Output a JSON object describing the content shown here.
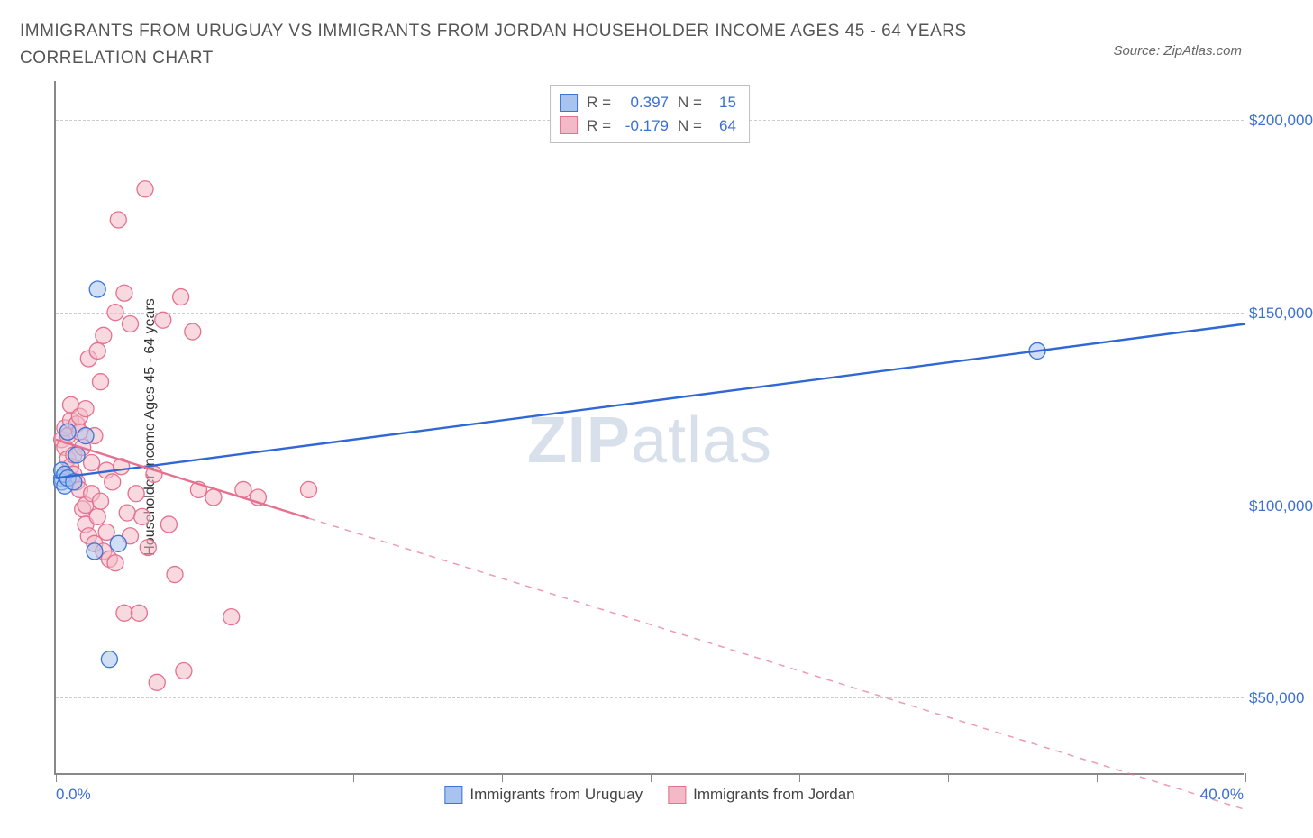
{
  "title": "IMMIGRANTS FROM URUGUAY VS IMMIGRANTS FROM JORDAN HOUSEHOLDER INCOME AGES 45 - 64 YEARS CORRELATION CHART",
  "source": "Source: ZipAtlas.com",
  "watermark_a": "ZIP",
  "watermark_b": "atlas",
  "y_axis_title": "Householder Income Ages 45 - 64 years",
  "chart": {
    "type": "scatter",
    "background_color": "#ffffff",
    "grid_color": "#cccccc",
    "axis_color": "#888888",
    "xlim": [
      0,
      40
    ],
    "ylim": [
      30000,
      210000
    ],
    "x_ticks": [
      0,
      5,
      10,
      15,
      20,
      25,
      30,
      35,
      40
    ],
    "y_ticks": [
      50000,
      100000,
      150000,
      200000
    ],
    "y_tick_labels": [
      "$50,000",
      "$100,000",
      "$150,000",
      "$200,000"
    ],
    "x_left_label": "0.0%",
    "x_right_label": "40.0%",
    "label_color": "#3b6fd4",
    "label_fontsize": 17,
    "title_fontsize": 19,
    "title_color": "#555555",
    "point_radius": 9,
    "point_opacity": 0.55,
    "line_width": 2.4
  },
  "series": [
    {
      "name": "Immigrants from Uruguay",
      "fill_color": "#a9c3ef",
      "stroke_color": "#3b74d6",
      "line_color": "#2f67d4",
      "stats": {
        "R_label": "R =",
        "R": "0.397",
        "N_label": "N =",
        "N": "15"
      },
      "trend": {
        "x1": 0,
        "y1": 107000,
        "x2": 40,
        "y2": 147000,
        "solid_until_x": 40
      },
      "points": [
        [
          0.2,
          107000
        ],
        [
          0.2,
          109000
        ],
        [
          0.2,
          106000
        ],
        [
          0.3,
          105000
        ],
        [
          0.3,
          108000
        ],
        [
          0.4,
          119000
        ],
        [
          0.4,
          107000
        ],
        [
          0.6,
          106000
        ],
        [
          0.7,
          113000
        ],
        [
          1.0,
          118000
        ],
        [
          1.3,
          88000
        ],
        [
          1.4,
          156000
        ],
        [
          1.8,
          60000
        ],
        [
          2.1,
          90000
        ],
        [
          33.0,
          140000
        ]
      ]
    },
    {
      "name": "Immigrants from Jordan",
      "fill_color": "#f3b9c7",
      "stroke_color": "#e6708f",
      "line_color": "#e6708f",
      "stats": {
        "R_label": "R =",
        "R": "-0.179",
        "N_label": "N =",
        "N": "64"
      },
      "trend": {
        "x1": 0,
        "y1": 117000,
        "x2": 40,
        "y2": 21000,
        "solid_until_x": 8.5
      },
      "points": [
        [
          0.2,
          117000
        ],
        [
          0.3,
          115000
        ],
        [
          0.3,
          120000
        ],
        [
          0.4,
          112000
        ],
        [
          0.4,
          118000
        ],
        [
          0.5,
          110000
        ],
        [
          0.5,
          122000
        ],
        [
          0.5,
          126000
        ],
        [
          0.6,
          108000
        ],
        [
          0.6,
          113000
        ],
        [
          0.7,
          121000
        ],
        [
          0.7,
          106000
        ],
        [
          0.8,
          119000
        ],
        [
          0.8,
          123000
        ],
        [
          0.8,
          104000
        ],
        [
          0.9,
          115000
        ],
        [
          0.9,
          99000
        ],
        [
          1.0,
          125000
        ],
        [
          1.0,
          100000
        ],
        [
          1.0,
          95000
        ],
        [
          1.1,
          138000
        ],
        [
          1.1,
          92000
        ],
        [
          1.2,
          103000
        ],
        [
          1.2,
          111000
        ],
        [
          1.3,
          90000
        ],
        [
          1.3,
          118000
        ],
        [
          1.4,
          140000
        ],
        [
          1.4,
          97000
        ],
        [
          1.5,
          132000
        ],
        [
          1.5,
          101000
        ],
        [
          1.6,
          88000
        ],
        [
          1.6,
          144000
        ],
        [
          1.7,
          109000
        ],
        [
          1.7,
          93000
        ],
        [
          1.8,
          86000
        ],
        [
          1.9,
          106000
        ],
        [
          2.0,
          85000
        ],
        [
          2.0,
          150000
        ],
        [
          2.1,
          174000
        ],
        [
          2.2,
          110000
        ],
        [
          2.3,
          72000
        ],
        [
          2.3,
          155000
        ],
        [
          2.4,
          98000
        ],
        [
          2.5,
          92000
        ],
        [
          2.5,
          147000
        ],
        [
          2.7,
          103000
        ],
        [
          2.8,
          72000
        ],
        [
          2.9,
          97000
        ],
        [
          3.0,
          182000
        ],
        [
          3.1,
          89000
        ],
        [
          3.3,
          108000
        ],
        [
          3.4,
          54000
        ],
        [
          3.6,
          148000
        ],
        [
          3.8,
          95000
        ],
        [
          4.0,
          82000
        ],
        [
          4.2,
          154000
        ],
        [
          4.3,
          57000
        ],
        [
          4.6,
          145000
        ],
        [
          4.8,
          104000
        ],
        [
          5.3,
          102000
        ],
        [
          5.9,
          71000
        ],
        [
          6.3,
          104000
        ],
        [
          6.8,
          102000
        ],
        [
          8.5,
          104000
        ]
      ]
    }
  ]
}
